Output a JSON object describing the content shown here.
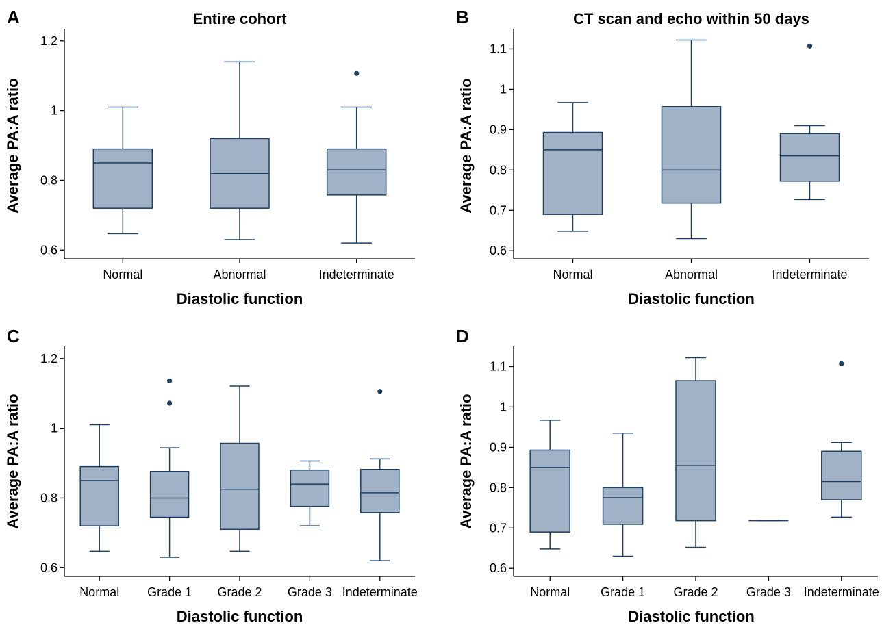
{
  "chart_data": [
    {
      "panel": "A",
      "type": "box",
      "title": "Entire cohort",
      "xlabel": "Diastolic function",
      "ylabel": "Average PA:A ratio",
      "ylim": [
        0.575,
        1.235
      ],
      "yticks": [
        "0.6",
        "0.8",
        "1",
        "1.2"
      ],
      "ytick_values": [
        0.6,
        0.8,
        1.0,
        1.2
      ],
      "categories": [
        "Normal",
        "Abnormal",
        "Indeterminate"
      ],
      "boxes": [
        {
          "min": 0.647,
          "q1": 0.72,
          "median": 0.85,
          "q3": 0.89,
          "max": 1.01,
          "outliers": []
        },
        {
          "min": 0.63,
          "q1": 0.72,
          "median": 0.82,
          "q3": 0.92,
          "max": 1.14,
          "outliers": []
        },
        {
          "min": 0.62,
          "q1": 0.758,
          "median": 0.83,
          "q3": 0.89,
          "max": 1.01,
          "outliers": [
            1.107
          ]
        }
      ]
    },
    {
      "panel": "B",
      "type": "box",
      "title": "CT scan and echo within 50 days",
      "xlabel": "Diastolic function",
      "ylabel": "Average PA:A ratio",
      "ylim": [
        0.58,
        1.15
      ],
      "yticks": [
        "0.6",
        "0.7",
        "0.8",
        "0.9",
        "1",
        "1.1"
      ],
      "ytick_values": [
        0.6,
        0.7,
        0.8,
        0.9,
        1.0,
        1.1
      ],
      "categories": [
        "Normal",
        "Abnormal",
        "Indeterminate"
      ],
      "boxes": [
        {
          "min": 0.648,
          "q1": 0.69,
          "median": 0.85,
          "q3": 0.893,
          "max": 0.967,
          "outliers": []
        },
        {
          "min": 0.63,
          "q1": 0.718,
          "median": 0.8,
          "q3": 0.957,
          "max": 1.122,
          "outliers": []
        },
        {
          "min": 0.727,
          "q1": 0.772,
          "median": 0.835,
          "q3": 0.89,
          "max": 0.91,
          "outliers": [
            1.107
          ]
        }
      ]
    },
    {
      "panel": "C",
      "type": "box",
      "title": "",
      "xlabel": "Diastolic function",
      "ylabel": "Average PA:A ratio",
      "ylim": [
        0.575,
        1.235
      ],
      "yticks": [
        "0.6",
        "0.8",
        "1",
        "1.2"
      ],
      "ytick_values": [
        0.6,
        0.8,
        1.0,
        1.2
      ],
      "categories": [
        "Normal",
        "Grade 1",
        "Grade 2",
        "Grade 3",
        "Indeterminate"
      ],
      "boxes": [
        {
          "min": 0.647,
          "q1": 0.72,
          "median": 0.85,
          "q3": 0.89,
          "max": 1.01,
          "outliers": []
        },
        {
          "min": 0.63,
          "q1": 0.745,
          "median": 0.8,
          "q3": 0.876,
          "max": 0.944,
          "outliers": [
            1.072,
            1.136
          ]
        },
        {
          "min": 0.647,
          "q1": 0.71,
          "median": 0.825,
          "q3": 0.957,
          "max": 1.121,
          "outliers": []
        },
        {
          "min": 0.72,
          "q1": 0.776,
          "median": 0.84,
          "q3": 0.88,
          "max": 0.906,
          "outliers": []
        },
        {
          "min": 0.62,
          "q1": 0.758,
          "median": 0.815,
          "q3": 0.882,
          "max": 0.912,
          "outliers": [
            1.106
          ]
        }
      ]
    },
    {
      "panel": "D",
      "type": "box",
      "title": "",
      "xlabel": "Diastolic function",
      "ylabel": "Average PA:A ratio",
      "ylim": [
        0.58,
        1.15
      ],
      "yticks": [
        "0.6",
        "0.7",
        "0.8",
        "0.9",
        "1",
        "1.1"
      ],
      "ytick_values": [
        0.6,
        0.7,
        0.8,
        0.9,
        1.0,
        1.1
      ],
      "categories": [
        "Normal",
        "Grade 1",
        "Grade 2",
        "Grade 3",
        "Indeterminate"
      ],
      "boxes": [
        {
          "min": 0.648,
          "q1": 0.69,
          "median": 0.85,
          "q3": 0.893,
          "max": 0.967,
          "outliers": []
        },
        {
          "min": 0.63,
          "q1": 0.709,
          "median": 0.775,
          "q3": 0.8,
          "max": 0.935,
          "outliers": []
        },
        {
          "min": 0.652,
          "q1": 0.718,
          "median": 0.855,
          "q3": 1.065,
          "max": 1.122,
          "outliers": []
        },
        {
          "min": 0.718,
          "q1": 0.718,
          "median": 0.718,
          "q3": 0.718,
          "max": 0.718,
          "outliers": []
        },
        {
          "min": 0.727,
          "q1": 0.77,
          "median": 0.815,
          "q3": 0.89,
          "max": 0.912,
          "outliers": [
            1.107
          ]
        }
      ]
    }
  ],
  "colors": {
    "box_fill": "#a1b1c6",
    "box_stroke": "#1f4060",
    "outlier": "#1f4060",
    "axis": "#000000"
  }
}
